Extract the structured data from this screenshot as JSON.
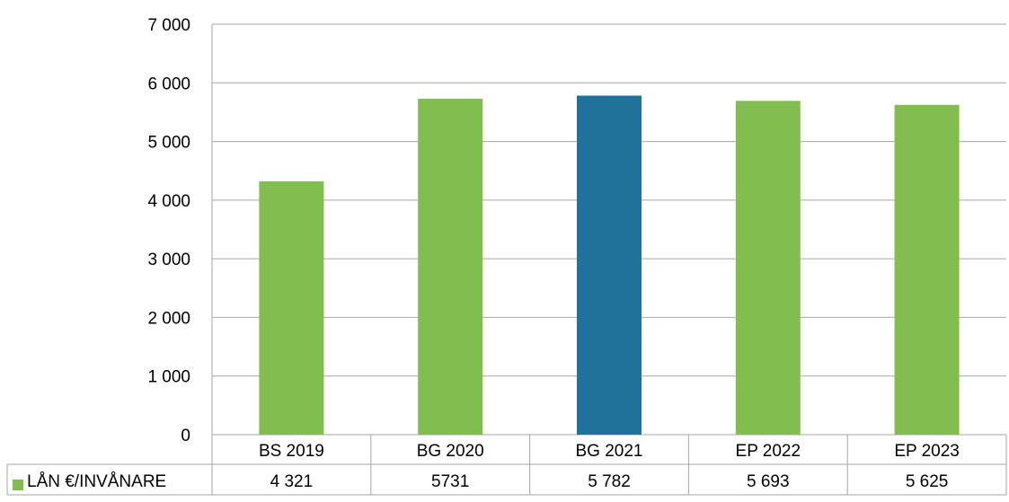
{
  "chart_data": {
    "type": "bar",
    "categories": [
      "BS 2019",
      "BG 2020",
      "BG 2021",
      "EP 2022",
      "EP 2023"
    ],
    "series": [
      {
        "name": "LÅN €/INVÅNARE",
        "values": [
          4321,
          5731,
          5782,
          5693,
          5625
        ],
        "table_labels": [
          "4 321",
          "5731",
          "5 782",
          "5 693",
          "5 625"
        ]
      }
    ],
    "y_ticks": [
      "0",
      "1 000",
      "2 000",
      "3 000",
      "4 000",
      "5 000",
      "6 000",
      "7 000"
    ],
    "ylim": [
      0,
      7000
    ],
    "grid": true,
    "legend": "data-table-left",
    "colors": {
      "bar": "#82bd4f",
      "highlight": "#21729a",
      "highlight_index": 2,
      "grid": "#a6a6a6"
    }
  }
}
